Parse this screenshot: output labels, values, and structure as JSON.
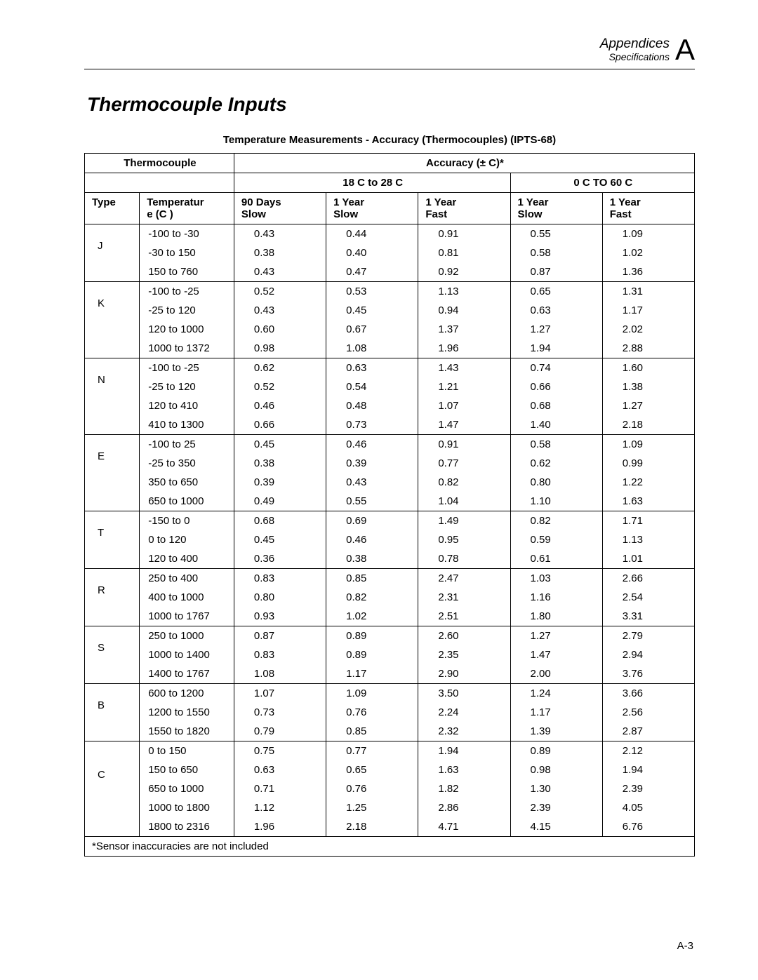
{
  "header": {
    "line1": "Appendices",
    "line2": "Specifications",
    "letter": "A"
  },
  "section_title": "Thermocouple Inputs",
  "table": {
    "caption": "Temperature Measurements - Accuracy (Thermocouples) (IPTS-68)",
    "head": {
      "thermocouple": "Thermocouple",
      "accuracy": "Accuracy (± C)*",
      "range1": "18 C to 28 C",
      "range2": "0 C TO 60 C",
      "type": "Type",
      "temp": "Temperatur​e (C )",
      "c90s": "90 Days Slow",
      "c1ys": "1 Year Slow",
      "c1yf": "1 Year Fast",
      "c1ys2": "1 Year Slow",
      "c1yf2": "1 Year Fast"
    },
    "groups": [
      {
        "type": "J",
        "type_row": 1,
        "rows": [
          {
            "range": "-100 to -30",
            "v": [
              "0.43",
              "0.44",
              "0.91",
              "0.55",
              "1.09"
            ]
          },
          {
            "range": "-30 to 150",
            "v": [
              "0.38",
              "0.40",
              "0.81",
              "0.58",
              "1.02"
            ]
          },
          {
            "range": "150 to 760",
            "v": [
              "0.43",
              "0.47",
              "0.92",
              "0.87",
              "1.36"
            ]
          }
        ]
      },
      {
        "type": "K",
        "type_row": 1,
        "rows": [
          {
            "range": "-100 to -25",
            "v": [
              "0.52",
              "0.53",
              "1.13",
              "0.65",
              "1.31"
            ]
          },
          {
            "range": "-25 to 120",
            "v": [
              "0.43",
              "0.45",
              "0.94",
              "0.63",
              "1.17"
            ]
          },
          {
            "range": "120 to 1000",
            "v": [
              "0.60",
              "0.67",
              "1.37",
              "1.27",
              "2.02"
            ]
          },
          {
            "range": "1000 to 1372",
            "v": [
              "0.98",
              "1.08",
              "1.96",
              "1.94",
              "2.88"
            ]
          }
        ]
      },
      {
        "type": "N",
        "type_row": 1,
        "rows": [
          {
            "range": "-100 to -25",
            "v": [
              "0.62",
              "0.63",
              "1.43",
              "0.74",
              "1.60"
            ]
          },
          {
            "range": "-25 to 120",
            "v": [
              "0.52",
              "0.54",
              "1.21",
              "0.66",
              "1.38"
            ]
          },
          {
            "range": "120 to 410",
            "v": [
              "0.46",
              "0.48",
              "1.07",
              "0.68",
              "1.27"
            ]
          },
          {
            "range": "410 to 1300",
            "v": [
              "0.66",
              "0.73",
              "1.47",
              "1.40",
              "2.18"
            ]
          }
        ]
      },
      {
        "type": "E",
        "type_row": 1,
        "rows": [
          {
            "range": "-100 to 25",
            "v": [
              "0.45",
              "0.46",
              "0.91",
              "0.58",
              "1.09"
            ]
          },
          {
            "range": "-25 to 350",
            "v": [
              "0.38",
              "0.39",
              "0.77",
              "0.62",
              "0.99"
            ]
          },
          {
            "range": "350 to 650",
            "v": [
              "0.39",
              "0.43",
              "0.82",
              "0.80",
              "1.22"
            ]
          },
          {
            "range": "650 to 1000",
            "v": [
              "0.49",
              "0.55",
              "1.04",
              "1.10",
              "1.63"
            ]
          }
        ]
      },
      {
        "type": "T",
        "type_row": 1,
        "rows": [
          {
            "range": "-150 to 0",
            "v": [
              "0.68",
              "0.69",
              "1.49",
              "0.82",
              "1.71"
            ]
          },
          {
            "range": "0 to 120",
            "v": [
              "0.45",
              "0.46",
              "0.95",
              "0.59",
              "1.13"
            ]
          },
          {
            "range": "120 to 400",
            "v": [
              "0.36",
              "0.38",
              "0.78",
              "0.61",
              "1.01"
            ]
          }
        ]
      },
      {
        "type": "R",
        "type_row": 1,
        "rows": [
          {
            "range": "250 to 400",
            "v": [
              "0.83",
              "0.85",
              "2.47",
              "1.03",
              "2.66"
            ]
          },
          {
            "range": "400 to 1000",
            "v": [
              "0.80",
              "0.82",
              "2.31",
              "1.16",
              "2.54"
            ]
          },
          {
            "range": "1000 to 1767",
            "v": [
              "0.93",
              "1.02",
              "2.51",
              "1.80",
              "3.31"
            ]
          }
        ]
      },
      {
        "type": "S",
        "type_row": 1,
        "rows": [
          {
            "range": "250 to 1000",
            "v": [
              "0.87",
              "0.89",
              "2.60",
              "1.27",
              "2.79"
            ]
          },
          {
            "range": "1000 to 1400",
            "v": [
              "0.83",
              "0.89",
              "2.35",
              "1.47",
              "2.94"
            ]
          },
          {
            "range": "1400 to 1767",
            "v": [
              "1.08",
              "1.17",
              "2.90",
              "2.00",
              "3.76"
            ]
          }
        ]
      },
      {
        "type": "B",
        "type_row": 1,
        "rows": [
          {
            "range": "600 to 1200",
            "v": [
              "1.07",
              "1.09",
              "3.50",
              "1.24",
              "3.66"
            ]
          },
          {
            "range": "1200 to 1550",
            "v": [
              "0.73",
              "0.76",
              "2.24",
              "1.17",
              "2.56"
            ]
          },
          {
            "range": "1550 to 1820",
            "v": [
              "0.79",
              "0.85",
              "2.32",
              "1.39",
              "2.87"
            ]
          }
        ]
      },
      {
        "type": "C",
        "type_row": 2,
        "rows": [
          {
            "range": "0 to 150",
            "v": [
              "0.75",
              "0.77",
              "1.94",
              "0.89",
              "2.12"
            ]
          },
          {
            "range": "150 to 650",
            "v": [
              "0.63",
              "0.65",
              "1.63",
              "0.98",
              "1.94"
            ]
          },
          {
            "range": "650 to 1000",
            "v": [
              "0.71",
              "0.76",
              "1.82",
              "1.30",
              "2.39"
            ]
          },
          {
            "range": "1000 to 1800",
            "v": [
              "1.12",
              "1.25",
              "2.86",
              "2.39",
              "4.05"
            ]
          },
          {
            "range": "1800 to 2316",
            "v": [
              "1.96",
              "2.18",
              "4.71",
              "4.15",
              "6.76"
            ]
          }
        ]
      }
    ],
    "footnote": "*Sensor inaccuracies are not included"
  },
  "page_number": "A-3"
}
